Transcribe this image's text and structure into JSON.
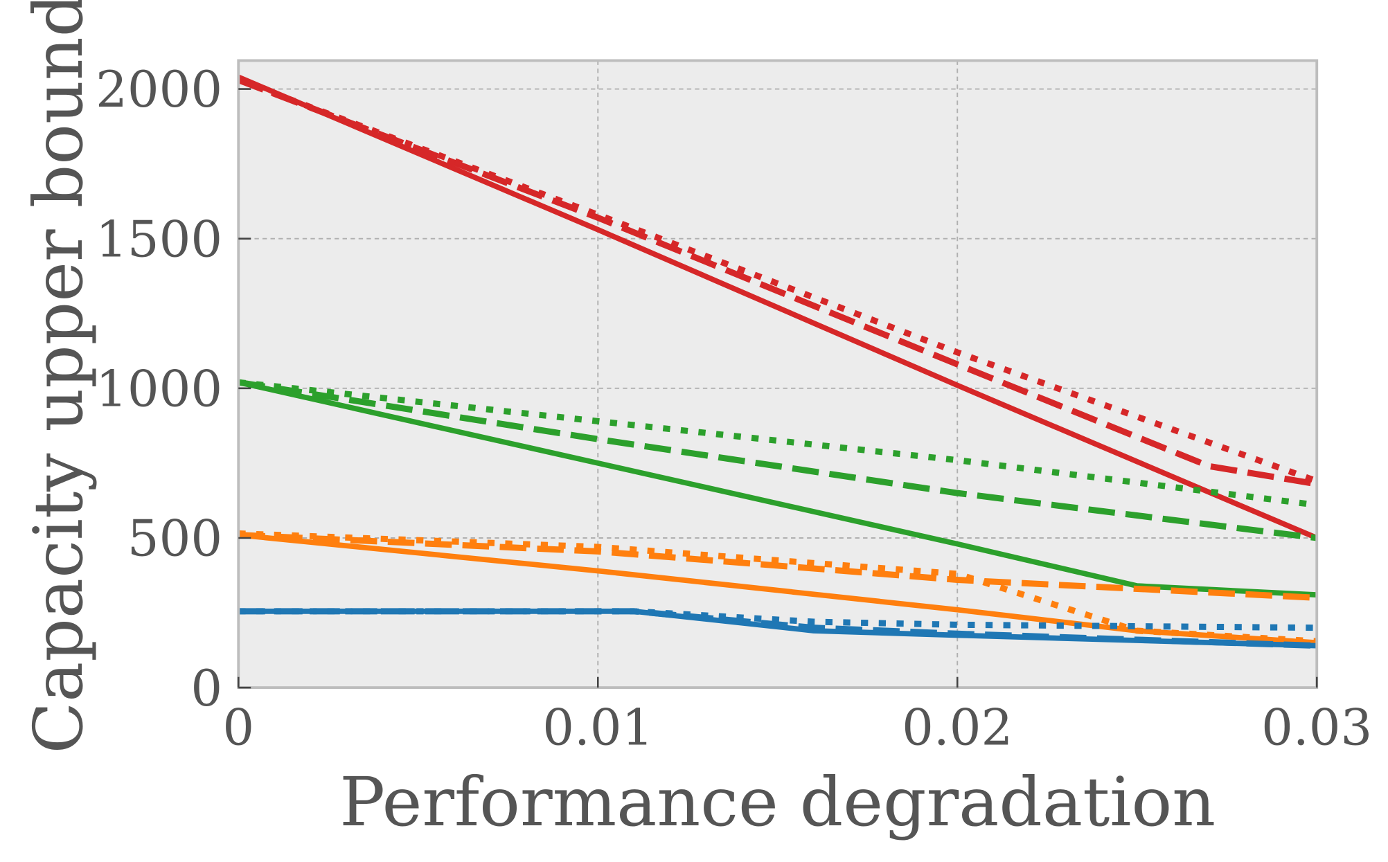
{
  "chart_data": {
    "type": "line",
    "title": "",
    "xlabel": "Performance degradation",
    "ylabel": "Capacity upper bound",
    "xlim": [
      0,
      0.03
    ],
    "ylim": [
      0,
      2100
    ],
    "xticks": [
      0,
      0.01,
      0.02,
      0.03
    ],
    "xtick_labels": [
      "0",
      "0.01",
      "0.02",
      "0.03"
    ],
    "yticks": [
      0,
      500,
      1000,
      1500,
      2000
    ],
    "ytick_labels": [
      "0",
      "500",
      "1000",
      "1500",
      "2000"
    ],
    "grid": true,
    "legend": "none",
    "background": "#ececec",
    "series": [
      {
        "color": "#d62728",
        "style": "solid",
        "x": [
          0,
          0.01,
          0.02,
          0.03
        ],
        "y": [
          2040,
          1530,
          1010,
          500
        ]
      },
      {
        "color": "#d62728",
        "style": "dashed",
        "x": [
          0,
          0.01,
          0.02,
          0.027,
          0.03
        ],
        "y": [
          2030,
          1570,
          1080,
          740,
          680
        ]
      },
      {
        "color": "#d62728",
        "style": "dotted",
        "x": [
          0,
          0.01,
          0.02,
          0.03
        ],
        "y": [
          2030,
          1580,
          1120,
          690
        ]
      },
      {
        "color": "#2ca02c",
        "style": "solid",
        "x": [
          0,
          0.01,
          0.02,
          0.025,
          0.03
        ],
        "y": [
          1020,
          750,
          480,
          340,
          310
        ]
      },
      {
        "color": "#2ca02c",
        "style": "dashed",
        "x": [
          0,
          0.01,
          0.02,
          0.03
        ],
        "y": [
          1020,
          830,
          650,
          500
        ]
      },
      {
        "color": "#2ca02c",
        "style": "dotted",
        "x": [
          0,
          0.01,
          0.02,
          0.03
        ],
        "y": [
          1020,
          890,
          760,
          610
        ]
      },
      {
        "color": "#ff7f0e",
        "style": "solid",
        "x": [
          0,
          0.01,
          0.02,
          0.025,
          0.03
        ],
        "y": [
          510,
          390,
          260,
          190,
          150
        ]
      },
      {
        "color": "#ff7f0e",
        "style": "dashed",
        "x": [
          0,
          0.01,
          0.02,
          0.03
        ],
        "y": [
          510,
          455,
          360,
          300
        ]
      },
      {
        "color": "#ff7f0e",
        "style": "dotted",
        "x": [
          0,
          0.01,
          0.02,
          0.025,
          0.03
        ],
        "y": [
          515,
          470,
          380,
          190,
          155
        ]
      },
      {
        "color": "#1f77b4",
        "style": "solid",
        "x": [
          0,
          0.011,
          0.016,
          0.02,
          0.03
        ],
        "y": [
          255,
          255,
          190,
          175,
          140
        ]
      },
      {
        "color": "#1f77b4",
        "style": "dashed",
        "x": [
          0,
          0.011,
          0.016,
          0.02,
          0.03
        ],
        "y": [
          255,
          255,
          200,
          180,
          140
        ]
      },
      {
        "color": "#1f77b4",
        "style": "dotted",
        "x": [
          0,
          0.011,
          0.016,
          0.02,
          0.03
        ],
        "y": [
          255,
          255,
          220,
          210,
          200
        ]
      }
    ]
  }
}
